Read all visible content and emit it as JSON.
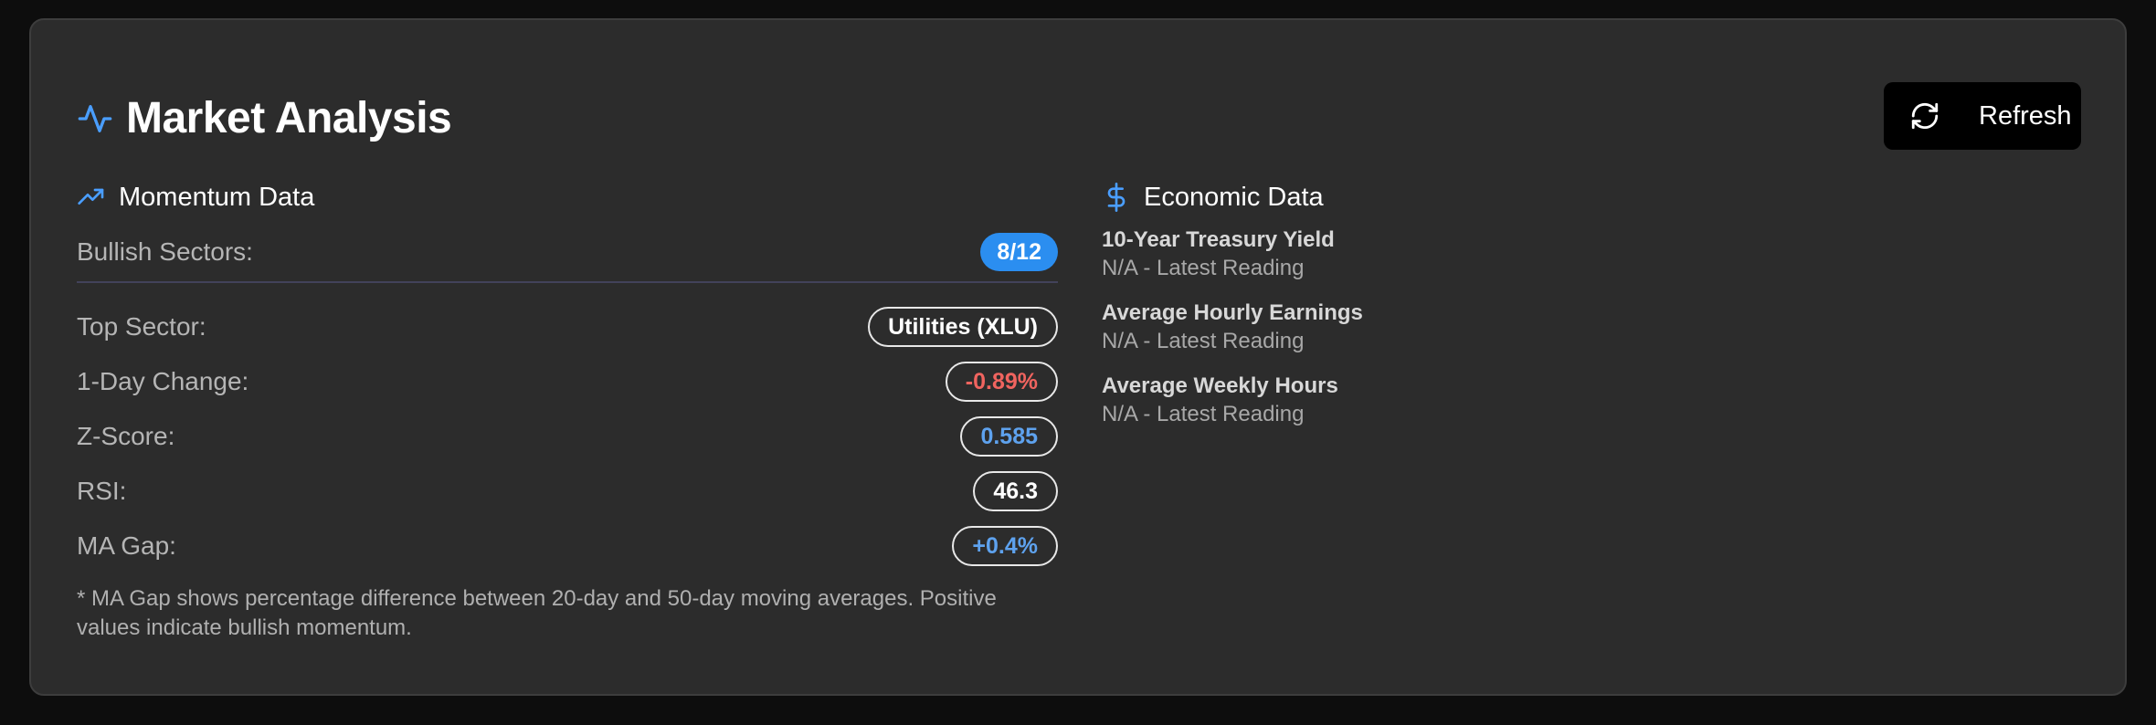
{
  "header": {
    "title": "Market Analysis",
    "title_icon": "activity-icon",
    "refresh_label": "Refresh",
    "refresh_icon": "refresh-icon"
  },
  "momentum": {
    "title": "Momentum Data",
    "icon": "trending-up-icon",
    "bullish_label": "Bullish Sectors:",
    "bullish_value": "8/12",
    "rows": [
      {
        "label": "Top Sector:",
        "value": "Utilities (XLU)",
        "color": "#ffffff"
      },
      {
        "label": "1-Day Change:",
        "value": "-0.89%",
        "color": "#f0645f"
      },
      {
        "label": "Z-Score:",
        "value": "0.585",
        "color": "#5ea2ee"
      },
      {
        "label": "RSI:",
        "value": "46.3",
        "color": "#ffffff"
      },
      {
        "label": "MA Gap:",
        "value": "+0.4%",
        "color": "#5ea2ee"
      }
    ],
    "note": "* MA Gap shows percentage difference between 20-day and 50-day moving averages. Positive values indicate bullish momentum."
  },
  "economic": {
    "title": "Economic Data",
    "icon": "dollar-icon",
    "items": [
      {
        "name": "10-Year Treasury Yield",
        "value": "N/A - Latest Reading"
      },
      {
        "name": "Average Hourly Earnings",
        "value": "N/A - Latest Reading"
      },
      {
        "name": "Average Weekly Hours",
        "value": "N/A - Latest Reading"
      }
    ]
  },
  "colors": {
    "accent_blue": "#2b8ef0",
    "negative": "#f0645f",
    "positive_blue": "#5ea2ee"
  }
}
